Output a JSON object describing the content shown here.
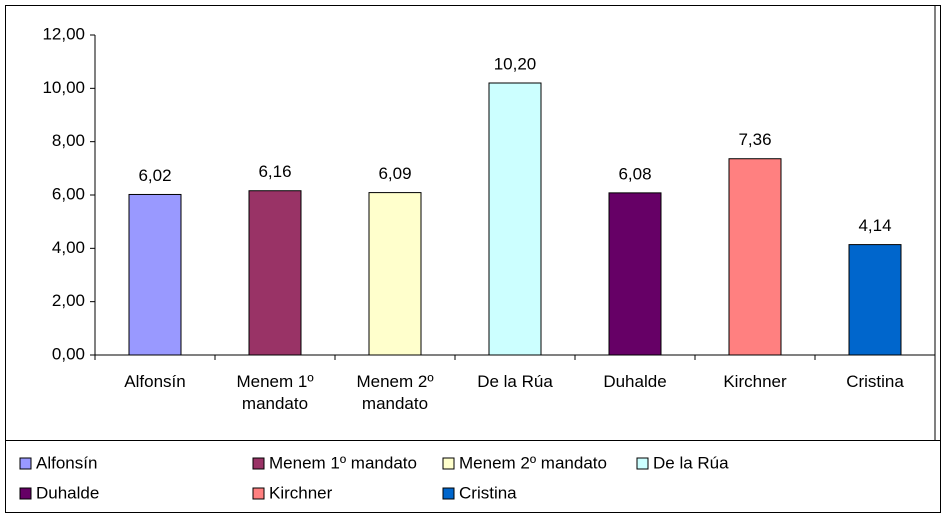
{
  "chart_data": {
    "type": "bar",
    "categories": [
      "Alfonsín",
      "Menem 1º mandato",
      "Menem 2º mandato",
      "De la Rúa",
      "Duhalde",
      "Kirchner",
      "Cristina"
    ],
    "values": [
      6.02,
      6.16,
      6.09,
      10.2,
      6.08,
      7.36,
      4.14
    ],
    "value_labels": [
      "6,02",
      "6,16",
      "6,09",
      "10,20",
      "6,08",
      "7,36",
      "4,14"
    ],
    "colors": [
      "#9999ff",
      "#993366",
      "#ffffcc",
      "#ccffff",
      "#660066",
      "#ff8080",
      "#0066cc"
    ],
    "ylim": [
      0,
      12
    ],
    "yticks": [
      {
        "value": 0,
        "label": "0,00"
      },
      {
        "value": 2,
        "label": "2,00"
      },
      {
        "value": 4,
        "label": "4,00"
      },
      {
        "value": 6,
        "label": "6,00"
      },
      {
        "value": 8,
        "label": "8,00"
      },
      {
        "value": 10,
        "label": "10,00"
      },
      {
        "value": 12,
        "label": "12,00"
      }
    ],
    "grid": false,
    "legend": "bottom"
  }
}
